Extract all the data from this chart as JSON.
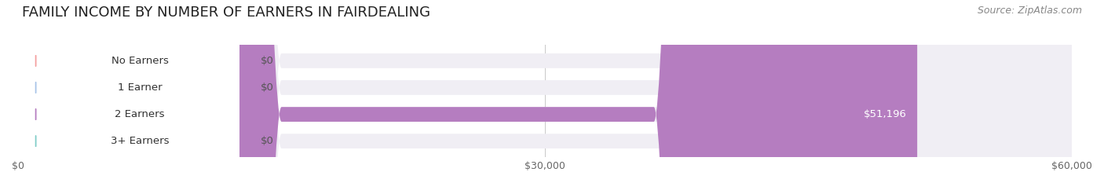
{
  "title": "FAMILY INCOME BY NUMBER OF EARNERS IN FAIRDEALING",
  "source": "Source: ZipAtlas.com",
  "categories": [
    "No Earners",
    "1 Earner",
    "2 Earners",
    "3+ Earners"
  ],
  "values": [
    0,
    0,
    51196,
    0
  ],
  "max_value": 60000,
  "bar_colors": [
    "#f4a0a0",
    "#a8c4e8",
    "#b57dc0",
    "#80cdc8"
  ],
  "bar_bg_color": "#f0eef4",
  "label_bg_color": "#ffffff",
  "value_labels": [
    "$0",
    "$0",
    "$51,196",
    "$0"
  ],
  "tick_labels": [
    "$0",
    "$30,000",
    "$60,000"
  ],
  "tick_values": [
    0,
    30000,
    60000
  ],
  "background_color": "#ffffff",
  "title_fontsize": 13,
  "source_fontsize": 9,
  "bar_height": 0.55,
  "fig_width": 14.06,
  "fig_height": 2.33
}
